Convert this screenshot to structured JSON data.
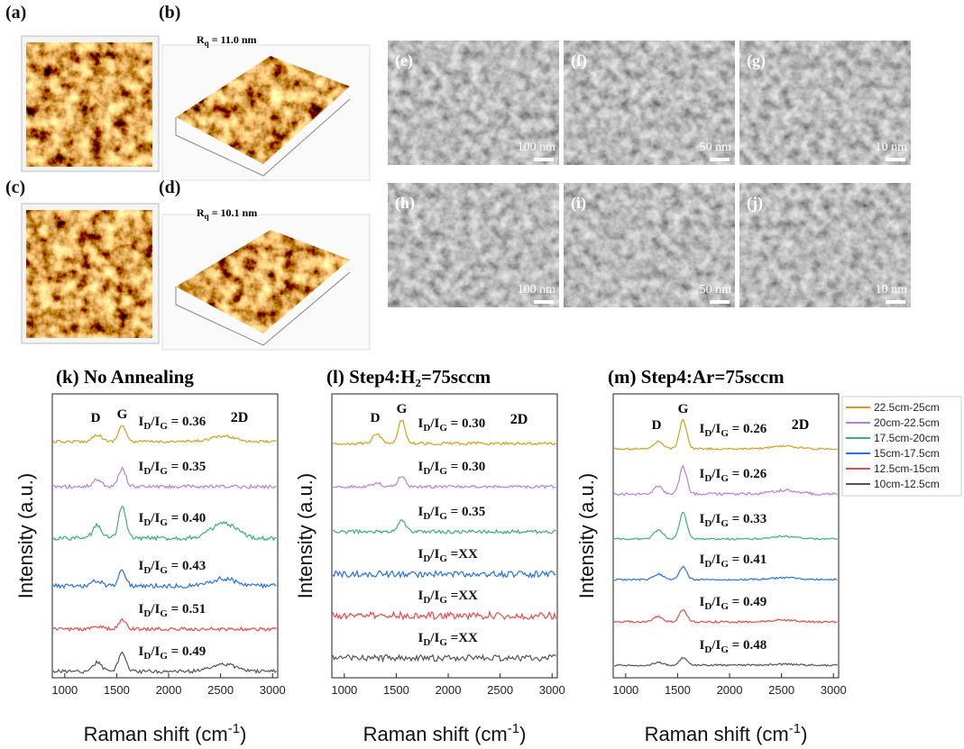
{
  "figure": {
    "afm": [
      {
        "label": "(a)",
        "image_label": "(b)",
        "roughness": "R",
        "roughness_sub": "q",
        "roughness_value": " = 11.0 nm"
      },
      {
        "label": "(c)",
        "image_label": "(d)",
        "roughness": "R",
        "roughness_sub": "q",
        "roughness_value": " = 10.1 nm"
      }
    ],
    "sem": [
      {
        "label": "(e)",
        "scale": "100 nm"
      },
      {
        "label": "(f)",
        "scale": "50 nm"
      },
      {
        "label": "(g)",
        "scale": "10 nm"
      },
      {
        "label": "(h)",
        "scale": "100 nm"
      },
      {
        "label": "(i)",
        "scale": "50 nm"
      },
      {
        "label": "(j)",
        "scale": "10 nm"
      }
    ],
    "ratio_symbol": {
      "i1": "I",
      "sub1": "D",
      "mid": "/I",
      "sub2": "G",
      "eq": " = ",
      "eq_tight": " ="
    },
    "x_label": {
      "main": "Raman shift (cm",
      "sup": "-1",
      "end": ")"
    },
    "y_label": "Intensity (a.u.)",
    "xlim": [
      880,
      3050
    ],
    "xticks": [
      1000,
      1500,
      2000,
      2500,
      3000
    ],
    "peaks": {
      "d": "D",
      "g": "G",
      "two_d": "2D"
    },
    "raman": [
      {
        "title": "(k) No Annealing",
        "ratios": [
          "0.36",
          "0.35",
          "0.40",
          "0.43",
          "0.51",
          "0.49"
        ]
      },
      {
        "title": "(l) Step4:H₂=75sccm",
        "ratios": [
          "0.30",
          "0.30",
          "0.35",
          "XX",
          "XX",
          "XX"
        ]
      },
      {
        "title": "(m) Step4:Ar=75sccm",
        "ratios": [
          "0.26",
          "0.26",
          "0.33",
          "0.41",
          "0.49",
          "0.48"
        ]
      }
    ],
    "legend": [
      {
        "name": "22.5cm-25cm",
        "color": "#d4a017"
      },
      {
        "name": "20cm-22.5cm",
        "color": "#b77fdd"
      },
      {
        "name": "17.5cm-20cm",
        "color": "#3bb273"
      },
      {
        "name": "15cm-17.5cm",
        "color": "#2a72e0"
      },
      {
        "name": "12.5cm-15cm",
        "color": "#e84b4b"
      },
      {
        "name": "10cm-12.5cm",
        "color": "#555555"
      }
    ]
  }
}
